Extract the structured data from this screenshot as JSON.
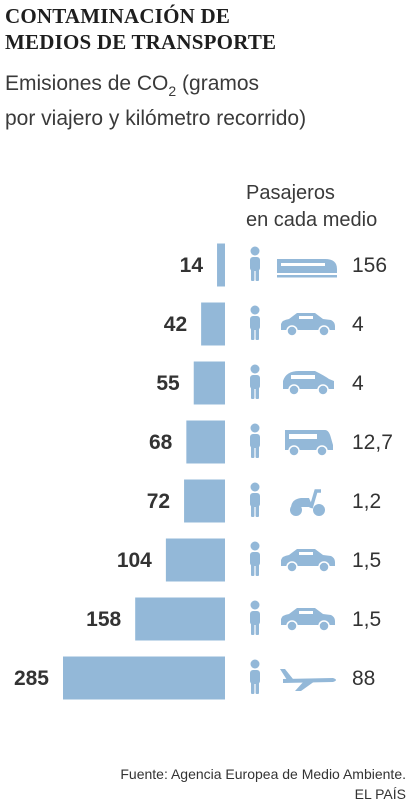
{
  "title_lines": [
    "CONTAMINACIÓN DE",
    "MEDIOS DE TRANSPORTE"
  ],
  "subtitle": {
    "line1_before": "Emisiones de CO",
    "line1_subscript": "2",
    "line1_after": " (gramos",
    "line2": "por viajero y kilómetro recorrido)"
  },
  "passengers_header": [
    "Pasajeros",
    "en cada medio"
  ],
  "colors": {
    "bar": "#93b8d8",
    "icon": "#93b8d8",
    "value_text": "#333333"
  },
  "chart_data": {
    "type": "bar",
    "orientation": "horizontal",
    "title": "CONTAMINACIÓN DE MEDIOS DE TRANSPORTE",
    "subtitle": "Emisiones de CO2 (gramos por viajero y kilómetro recorrido)",
    "categories": [
      "train-icon",
      "small-car-icon",
      "minivan-icon",
      "van-icon",
      "scooter-icon",
      "car-icon",
      "large-car-icon",
      "airplane-icon"
    ],
    "values": [
      14,
      42,
      55,
      68,
      72,
      104,
      158,
      285
    ],
    "value_labels": [
      "14",
      "42",
      "55",
      "68",
      "72",
      "104",
      "158",
      "285"
    ],
    "passengers": [
      "156",
      "4",
      "4",
      "12,7",
      "1,2",
      "1,5",
      "1,5",
      "88"
    ],
    "xlim": [
      0,
      285
    ],
    "grid": false,
    "legend": "none"
  },
  "source": {
    "line1": "Fuente: Agencia Europea de Medio Ambiente.",
    "line2": "EL PAÍS"
  }
}
